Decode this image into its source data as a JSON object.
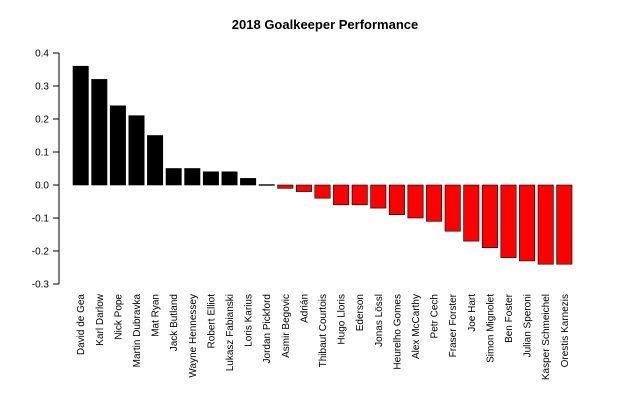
{
  "chart_data": {
    "type": "bar",
    "title": "2018 Goalkeeper Performance",
    "xlabel": "",
    "ylabel": "",
    "ylim": [
      -0.3,
      0.4
    ],
    "yticks": [
      "0.4",
      "0.3",
      "0.2",
      "0.1",
      "0.0",
      "-0.1",
      "-0.2",
      "-0.3"
    ],
    "ytick_values": [
      0.4,
      0.3,
      0.2,
      0.1,
      0.0,
      -0.1,
      -0.2,
      -0.3
    ],
    "grid": false,
    "colors": {
      "positive": "#000000",
      "negative": "#ff0000"
    },
    "categories": [
      "David de Gea",
      "Karl Darlow",
      "Nick Pope",
      "Martin Dubravka",
      "Mat Ryan",
      "Jack Butland",
      "Wayne Hennessey",
      "Robert Elliot",
      "Lukasz Fabianski",
      "Loris Karius",
      "Jordan Pickford",
      "Asmir Begovic",
      "Adrián",
      "Thibaut Courtois",
      "Hugo Lloris",
      "Ederson",
      "Jonas Lössl",
      "Heurelho Gomes",
      "Alex McCarthy",
      "Petr Cech",
      "Fraser Forster",
      "Joe Hart",
      "Simon Mignolet",
      "Ben Foster",
      "Julian Speroni",
      "Kasper Schmeichel",
      "Orestis Karnezis"
    ],
    "values": [
      0.36,
      0.32,
      0.24,
      0.21,
      0.15,
      0.05,
      0.05,
      0.04,
      0.04,
      0.02,
      0.0,
      -0.01,
      -0.02,
      -0.04,
      -0.06,
      -0.06,
      -0.07,
      -0.09,
      -0.1,
      -0.11,
      -0.14,
      -0.17,
      -0.19,
      -0.22,
      -0.23,
      -0.24,
      -0.24
    ]
  }
}
